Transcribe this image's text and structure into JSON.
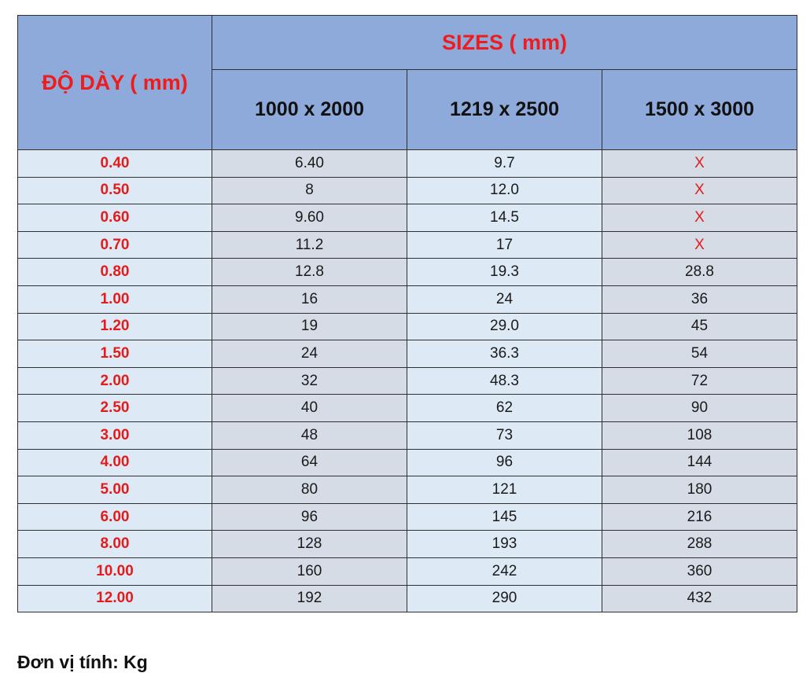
{
  "table": {
    "thickness_header": "ĐỘ DÀY ( mm)",
    "sizes_header": "SIZES ( mm)",
    "size_columns": [
      "1000 x 2000",
      "1219 x 2500",
      "1500 x 3000"
    ],
    "rows": [
      {
        "thickness": "0.40",
        "values": [
          "6.40",
          "9.7",
          "X"
        ]
      },
      {
        "thickness": "0.50",
        "values": [
          "8",
          "12.0",
          "X"
        ]
      },
      {
        "thickness": "0.60",
        "values": [
          "9.60",
          "14.5",
          "X"
        ]
      },
      {
        "thickness": "0.70",
        "values": [
          "11.2",
          "17",
          "X"
        ]
      },
      {
        "thickness": "0.80",
        "values": [
          "12.8",
          "19.3",
          "28.8"
        ]
      },
      {
        "thickness": "1.00",
        "values": [
          "16",
          "24",
          "36"
        ]
      },
      {
        "thickness": "1.20",
        "values": [
          "19",
          "29.0",
          "45"
        ]
      },
      {
        "thickness": "1.50",
        "values": [
          "24",
          "36.3",
          "54"
        ]
      },
      {
        "thickness": "2.00",
        "values": [
          "32",
          "48.3",
          "72"
        ]
      },
      {
        "thickness": "2.50",
        "values": [
          "40",
          "62",
          "90"
        ]
      },
      {
        "thickness": "3.00",
        "values": [
          "48",
          "73",
          "108"
        ]
      },
      {
        "thickness": "4.00",
        "values": [
          "64",
          "96",
          "144"
        ]
      },
      {
        "thickness": "5.00",
        "values": [
          "80",
          "121",
          "180"
        ]
      },
      {
        "thickness": "6.00",
        "values": [
          "96",
          "145",
          "216"
        ]
      },
      {
        "thickness": "8.00",
        "values": [
          "128",
          "193",
          "288"
        ]
      },
      {
        "thickness": "10.00",
        "values": [
          "160",
          "242",
          "360"
        ]
      },
      {
        "thickness": "12.00",
        "values": [
          "192",
          "290",
          "432"
        ]
      }
    ]
  },
  "footer": {
    "unit_note": "Đơn vị tính: Kg"
  },
  "colors": {
    "header_bg": "#8eaadb",
    "accent_red": "#ee1c1c",
    "row_light": "#dde9f5",
    "row_gray": "#d6dce6"
  }
}
